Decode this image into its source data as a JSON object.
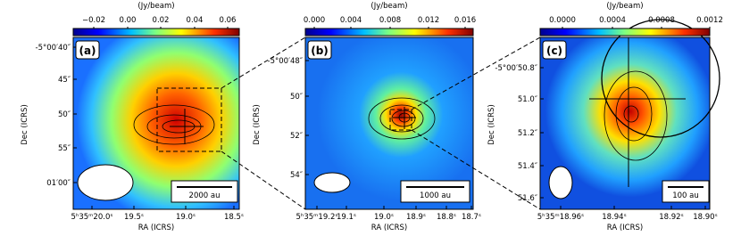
{
  "panels": [
    {
      "label": "(a)",
      "colorbar_label": "(Jy/beam)",
      "colorbar_ticks": [
        "−0.02",
        "0.00",
        "0.02",
        "0.04",
        "0.06"
      ],
      "y_ticks": [
        "-5°00′40″",
        "45″",
        "50″",
        "55″",
        "01′00″"
      ],
      "x_ticks": [
        "5ʰ35ᵐ20.0ˢ",
        "19.5ˢ",
        "19.0ˢ",
        "18.5ˢ"
      ],
      "x_label": "RA (ICRS)",
      "y_label": "Dec (ICRS)",
      "scale_bar": "2000 au"
    },
    {
      "label": "(b)",
      "colorbar_label": "(Jy/beam)",
      "colorbar_ticks": [
        "0.000",
        "0.004",
        "0.008",
        "0.012",
        "0.016"
      ],
      "y_ticks": [
        "-5°00′48″",
        "50″",
        "52″",
        "54″"
      ],
      "x_ticks": [
        "5ʰ35ᵐ19.2ˢ",
        "19.1ˢ",
        "19.0ˢ",
        "18.9ˢ",
        "18.8ˢ",
        "18.7ˢ"
      ],
      "x_label": "RA (ICRS)",
      "y_label": "Dec (ICRS)",
      "scale_bar": "1000 au"
    },
    {
      "label": "(c)",
      "colorbar_label": "(Jy/beam)",
      "colorbar_ticks": [
        "0.0000",
        "0.0004",
        "0.0008",
        "0.0012"
      ],
      "y_ticks": [
        "-5°00′50.8″",
        "51.0″",
        "51.2″",
        "51.4″",
        "51.6″"
      ],
      "x_ticks": [
        "5ʰ35ᵐ18.96ˢ",
        "18.94ˢ",
        "18.92ˢ",
        "18.90ˢ"
      ],
      "x_label": "RA (ICRS)",
      "y_label": "Dec (ICRS)",
      "scale_bar": "100 au"
    }
  ]
}
